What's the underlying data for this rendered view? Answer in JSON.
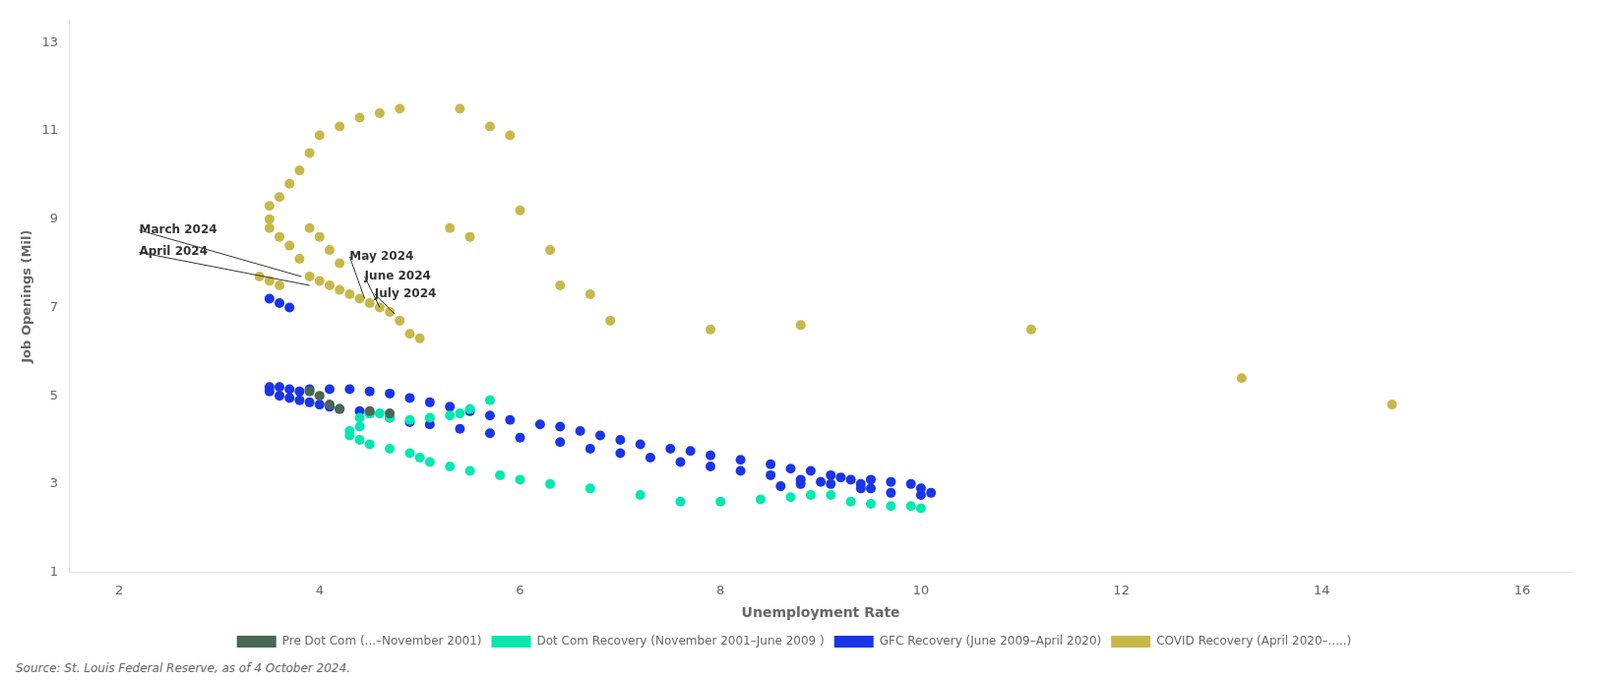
{
  "chart_data": {
    "type": "scatter",
    "xlabel": "Unemployment Rate",
    "ylabel": "Job Openings (Mil)",
    "source": "Source: St. Louis Federal Reserve, as of 4 October 2024.",
    "xlim": [
      1.5,
      16.5
    ],
    "ylim": [
      1,
      13.5
    ],
    "xticks": [
      2,
      4,
      6,
      8,
      10,
      12,
      14,
      16
    ],
    "yticks": [
      1,
      3,
      5,
      7,
      9,
      11,
      13
    ],
    "grid": false,
    "legend": "bottom",
    "series": [
      {
        "name": "Pre Dot Com (...–November 2001)",
        "color": "#4a6655",
        "values": [
          [
            3.9,
            5.1
          ],
          [
            4.0,
            5.0
          ],
          [
            4.1,
            4.8
          ],
          [
            4.2,
            4.7
          ],
          [
            4.5,
            4.65
          ],
          [
            4.7,
            4.6
          ]
        ]
      },
      {
        "name": "Dot Com Recovery (November 2001–June 2009 )",
        "color": "#00e8b0",
        "values": [
          [
            5.7,
            4.9
          ],
          [
            5.5,
            4.7
          ],
          [
            5.4,
            4.6
          ],
          [
            5.3,
            4.55
          ],
          [
            5.1,
            4.5
          ],
          [
            4.9,
            4.45
          ],
          [
            4.7,
            4.5
          ],
          [
            4.6,
            4.6
          ],
          [
            4.5,
            4.6
          ],
          [
            4.4,
            4.5
          ],
          [
            4.4,
            4.3
          ],
          [
            4.3,
            4.2
          ],
          [
            4.3,
            4.1
          ],
          [
            4.4,
            4.0
          ],
          [
            4.5,
            3.9
          ],
          [
            4.7,
            3.8
          ],
          [
            4.9,
            3.7
          ],
          [
            5.0,
            3.6
          ],
          [
            5.1,
            3.5
          ],
          [
            5.3,
            3.4
          ],
          [
            5.5,
            3.3
          ],
          [
            5.8,
            3.2
          ],
          [
            6.0,
            3.1
          ],
          [
            6.3,
            3.0
          ],
          [
            6.7,
            2.9
          ],
          [
            7.2,
            2.75
          ],
          [
            7.6,
            2.6
          ],
          [
            8.0,
            2.6
          ],
          [
            8.4,
            2.65
          ],
          [
            8.7,
            2.7
          ],
          [
            8.9,
            2.75
          ],
          [
            9.1,
            2.75
          ],
          [
            9.3,
            2.6
          ],
          [
            9.5,
            2.55
          ],
          [
            9.7,
            2.5
          ],
          [
            9.9,
            2.5
          ],
          [
            10.0,
            2.45
          ]
        ]
      },
      {
        "name": "GFC Recovery (June 2009–April 2020)",
        "color": "#1a35e8",
        "values": [
          [
            9.5,
            2.9
          ],
          [
            9.4,
            3.0
          ],
          [
            9.3,
            3.1
          ],
          [
            9.1,
            3.2
          ],
          [
            8.9,
            3.3
          ],
          [
            8.7,
            3.35
          ],
          [
            8.5,
            3.45
          ],
          [
            8.2,
            3.55
          ],
          [
            7.9,
            3.65
          ],
          [
            7.7,
            3.75
          ],
          [
            7.5,
            3.8
          ],
          [
            7.2,
            3.9
          ],
          [
            7.0,
            4.0
          ],
          [
            6.8,
            4.1
          ],
          [
            6.6,
            4.2
          ],
          [
            6.4,
            4.3
          ],
          [
            6.2,
            4.35
          ],
          [
            5.9,
            4.45
          ],
          [
            5.7,
            4.55
          ],
          [
            5.5,
            4.65
          ],
          [
            5.3,
            4.75
          ],
          [
            5.1,
            4.85
          ],
          [
            4.9,
            4.95
          ],
          [
            4.7,
            5.05
          ],
          [
            4.5,
            5.1
          ],
          [
            4.3,
            5.15
          ],
          [
            4.1,
            5.15
          ],
          [
            3.9,
            5.15
          ],
          [
            3.8,
            5.1
          ],
          [
            3.7,
            5.15
          ],
          [
            3.6,
            5.2
          ],
          [
            3.5,
            5.2
          ],
          [
            3.5,
            5.1
          ],
          [
            3.6,
            5.0
          ],
          [
            3.7,
            4.95
          ],
          [
            3.8,
            4.9
          ],
          [
            3.9,
            4.85
          ],
          [
            4.0,
            4.8
          ],
          [
            4.1,
            4.75
          ],
          [
            4.2,
            4.7
          ],
          [
            4.4,
            4.65
          ],
          [
            4.5,
            4.6
          ],
          [
            4.7,
            4.5
          ],
          [
            4.9,
            4.4
          ],
          [
            5.1,
            4.35
          ],
          [
            5.4,
            4.25
          ],
          [
            5.7,
            4.15
          ],
          [
            6.0,
            4.05
          ],
          [
            6.4,
            3.95
          ],
          [
            6.7,
            3.8
          ],
          [
            7.0,
            3.7
          ],
          [
            7.3,
            3.6
          ],
          [
            7.6,
            3.5
          ],
          [
            7.9,
            3.4
          ],
          [
            8.2,
            3.3
          ],
          [
            8.5,
            3.2
          ],
          [
            8.8,
            3.1
          ],
          [
            9.1,
            3.0
          ],
          [
            9.4,
            2.9
          ],
          [
            9.7,
            2.8
          ],
          [
            10.0,
            2.75
          ],
          [
            10.1,
            2.8
          ],
          [
            10.0,
            2.9
          ],
          [
            9.9,
            3.0
          ],
          [
            9.7,
            3.05
          ],
          [
            9.5,
            3.1
          ],
          [
            9.2,
            3.15
          ],
          [
            9.0,
            3.05
          ],
          [
            8.8,
            3.0
          ],
          [
            8.6,
            2.95
          ],
          [
            3.5,
            7.2
          ],
          [
            3.6,
            7.1
          ],
          [
            3.7,
            7.0
          ]
        ]
      },
      {
        "name": "COVID Recovery (April 2020–.....)",
        "color": "#c8b84a",
        "values": [
          [
            14.7,
            4.8
          ],
          [
            13.2,
            5.4
          ],
          [
            11.1,
            6.5
          ],
          [
            8.8,
            6.6
          ],
          [
            7.9,
            6.5
          ],
          [
            6.9,
            6.7
          ],
          [
            6.7,
            7.3
          ],
          [
            6.4,
            7.5
          ],
          [
            6.3,
            8.3
          ],
          [
            6.0,
            9.2
          ],
          [
            5.9,
            10.9
          ],
          [
            5.7,
            11.1
          ],
          [
            5.4,
            11.5
          ],
          [
            4.8,
            11.5
          ],
          [
            4.6,
            11.4
          ],
          [
            4.4,
            11.3
          ],
          [
            4.2,
            11.1
          ],
          [
            4.0,
            10.9
          ],
          [
            3.9,
            10.5
          ],
          [
            3.8,
            10.1
          ],
          [
            3.7,
            9.8
          ],
          [
            3.6,
            9.5
          ],
          [
            3.5,
            9.3
          ],
          [
            3.5,
            9.0
          ],
          [
            3.5,
            8.8
          ],
          [
            3.6,
            8.6
          ],
          [
            3.7,
            8.4
          ],
          [
            3.8,
            8.1
          ],
          [
            3.9,
            8.8
          ],
          [
            4.0,
            8.6
          ],
          [
            4.1,
            8.3
          ],
          [
            4.2,
            8.0
          ],
          [
            3.9,
            7.7
          ],
          [
            4.0,
            7.6
          ],
          [
            4.1,
            7.5
          ],
          [
            4.2,
            7.4
          ],
          [
            4.3,
            7.3
          ],
          [
            4.4,
            7.2
          ],
          [
            4.5,
            7.1
          ],
          [
            4.6,
            7.0
          ],
          [
            4.7,
            6.9
          ],
          [
            4.8,
            6.7
          ],
          [
            4.9,
            6.4
          ],
          [
            5.0,
            6.3
          ],
          [
            5.3,
            8.8
          ],
          [
            5.5,
            8.6
          ],
          [
            3.4,
            7.7
          ],
          [
            3.5,
            7.6
          ],
          [
            3.6,
            7.5
          ]
        ]
      }
    ],
    "annotations": [
      {
        "text": "March 2024",
        "xy": [
          3.82,
          7.7
        ],
        "xytext": [
          2.2,
          8.75
        ]
      },
      {
        "text": "April 2024",
        "xy": [
          3.9,
          7.5
        ],
        "xytext": [
          2.2,
          8.25
        ]
      },
      {
        "text": "May 2024",
        "xy": [
          4.45,
          7.2
        ],
        "xytext": [
          4.3,
          8.15
        ]
      },
      {
        "text": "June 2024",
        "xy": [
          4.6,
          7.0
        ],
        "xytext": [
          4.45,
          7.7
        ]
      },
      {
        "text": "July 2024",
        "xy": [
          4.75,
          6.85
        ],
        "xytext": [
          4.55,
          7.3
        ]
      }
    ]
  }
}
